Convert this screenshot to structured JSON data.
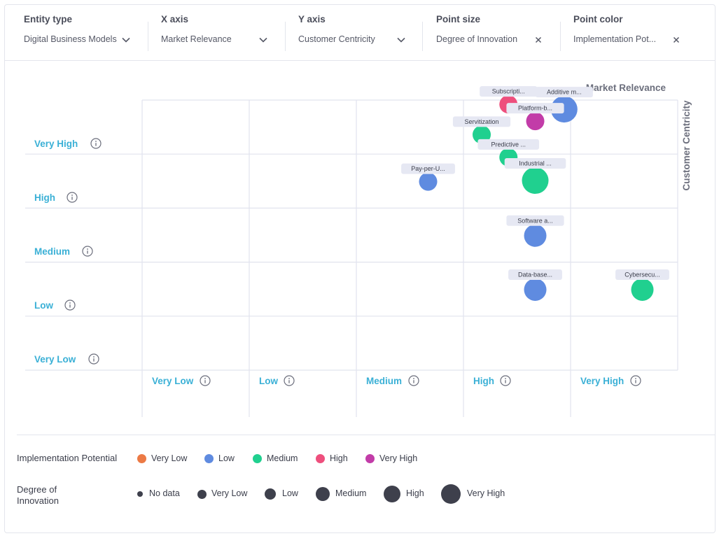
{
  "filters": [
    {
      "label": "Entity type",
      "value": "Digital Business Models",
      "icon": "chevron-down-icon"
    },
    {
      "label": "X axis",
      "value": "Market Relevance",
      "icon": "chevron-down-icon"
    },
    {
      "label": "Y axis",
      "value": "Customer Centricity",
      "icon": "chevron-down-icon"
    },
    {
      "label": "Point size",
      "value": "Degree of Innovation",
      "icon": "close-icon"
    },
    {
      "label": "Point color",
      "value": "Implementation Pot...",
      "icon": "close-icon"
    }
  ],
  "chart_data": {
    "type": "scatter",
    "xlabel": "Market Relevance",
    "ylabel": "Customer Centricity",
    "x_categories": [
      "Very Low",
      "Low",
      "Medium",
      "High",
      "Very High"
    ],
    "y_categories": [
      "Very Low",
      "Low",
      "Medium",
      "High",
      "Very High"
    ],
    "xlim": [
      0,
      5
    ],
    "ylim": [
      0,
      5
    ],
    "points": [
      {
        "label": "Subscripti...",
        "x": 3.42,
        "y": 4.92,
        "color": "High",
        "size": "Low"
      },
      {
        "label": "Additive m...",
        "x": 3.94,
        "y": 4.83,
        "color": "Low",
        "size": "High"
      },
      {
        "label": "Platform-b...",
        "x": 3.67,
        "y": 4.61,
        "color": "Very High",
        "size": "Low"
      },
      {
        "label": "Servitization",
        "x": 3.17,
        "y": 4.36,
        "color": "Medium",
        "size": "Low"
      },
      {
        "label": "Predictive ...",
        "x": 3.42,
        "y": 3.94,
        "color": "Medium",
        "size": "Low"
      },
      {
        "label": "Pay-per-U...",
        "x": 2.67,
        "y": 3.49,
        "color": "Low",
        "size": "Low"
      },
      {
        "label": "Industrial ...",
        "x": 3.67,
        "y": 3.51,
        "color": "Medium",
        "size": "High"
      },
      {
        "label": "Software a...",
        "x": 3.67,
        "y": 2.49,
        "color": "Low",
        "size": "Medium"
      },
      {
        "label": "Data-base...",
        "x": 3.67,
        "y": 1.49,
        "color": "Low",
        "size": "Medium"
      },
      {
        "label": "Cybersecu...",
        "x": 4.67,
        "y": 1.49,
        "color": "Medium",
        "size": "Medium"
      }
    ]
  },
  "legend": {
    "color_title": "Implementation Potential",
    "color_items": [
      {
        "label": "Very Low",
        "color": "#ec7a45"
      },
      {
        "label": "Low",
        "color": "#5f8be0"
      },
      {
        "label": "Medium",
        "color": "#20d08f"
      },
      {
        "label": "High",
        "color": "#ee4f7d"
      },
      {
        "label": "Very High",
        "color": "#c23ca8"
      }
    ],
    "size_title": "Degree of Innovation",
    "size_items": [
      {
        "label": "No data",
        "level": 0
      },
      {
        "label": "Very Low",
        "level": 1
      },
      {
        "label": "Low",
        "level": 2
      },
      {
        "label": "Medium",
        "level": 3
      },
      {
        "label": "High",
        "level": 4
      },
      {
        "label": "Very High",
        "level": 5
      }
    ],
    "size_color": "#3e404c"
  },
  "colors": {
    "accent": "#3ab0d6",
    "grid": "#e1e3ee",
    "tag_bg": "#e6e8f3"
  }
}
